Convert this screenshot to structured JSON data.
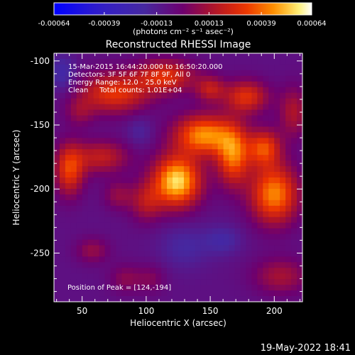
{
  "chart_data": {
    "type": "heatmap",
    "title": "Reconstructed RHESSI Image",
    "xlabel": "Heliocentric X (arcsec)",
    "ylabel": "Heliocentric Y (arcsec)",
    "xlim": [
      28,
      222
    ],
    "ylim": [
      -288,
      -94
    ],
    "x_ticks": [
      50,
      100,
      150,
      200
    ],
    "y_ticks": [
      -100,
      -150,
      -200,
      -250
    ],
    "x_tick_labels": [
      "50",
      "100",
      "150",
      "200"
    ],
    "y_tick_labels": [
      "-100",
      "-150",
      "-200",
      "-250"
    ],
    "colorbar": {
      "range": [
        -0.00064,
        0.00064
      ],
      "ticks": [
        -0.00064,
        -0.00039,
        -0.00013,
        0.00013,
        0.00039,
        0.00064
      ],
      "tick_labels": [
        "-0.00064",
        "-0.00039",
        "-0.00013",
        "0.00013",
        "0.00039",
        "0.00064"
      ],
      "units_label": "(photons cm⁻² s⁻¹ asec⁻²)"
    },
    "annotations": [
      "15-Mar-2015 16:44:20.000 to 16:50:20.000",
      "Detectors: 3F 5F 6F 7F 8F 9F, All 0",
      "Energy Range: 12.0 - 25.0 keV",
      "Clean     Total counts: 1.01E+04",
      "Position of Peak = [124,-194]"
    ],
    "peak": {
      "x": 124,
      "y": -194
    },
    "sources": [
      {
        "x": 124,
        "y": -194,
        "sx": 13,
        "sy": 14,
        "amp": 1.0
      },
      {
        "x": 145,
        "y": -158,
        "sx": 16,
        "sy": 11,
        "amp": 0.82
      },
      {
        "x": 168,
        "y": -174,
        "sx": 9,
        "sy": 16,
        "amp": 0.72
      },
      {
        "x": 192,
        "y": -168,
        "sx": 9,
        "sy": 10,
        "amp": 0.62
      },
      {
        "x": 200,
        "y": -204,
        "sx": 13,
        "sy": 16,
        "amp": 0.8
      },
      {
        "x": 178,
        "y": -128,
        "sx": 12,
        "sy": 9,
        "amp": 0.55
      },
      {
        "x": 75,
        "y": -125,
        "sx": 19,
        "sy": 11,
        "amp": 0.58
      },
      {
        "x": 115,
        "y": -112,
        "sx": 16,
        "sy": 9,
        "amp": 0.55
      },
      {
        "x": 40,
        "y": -185,
        "sx": 8,
        "sy": 14,
        "amp": 0.6
      },
      {
        "x": 65,
        "y": -175,
        "sx": 15,
        "sy": 9,
        "amp": 0.42
      },
      {
        "x": 100,
        "y": -210,
        "sx": 9,
        "sy": 11,
        "amp": 0.35
      },
      {
        "x": 78,
        "y": -205,
        "sx": 8,
        "sy": 8,
        "amp": 0.25
      },
      {
        "x": 58,
        "y": -248,
        "sx": 9,
        "sy": 7,
        "amp": 0.26
      },
      {
        "x": 84,
        "y": -270,
        "sx": 9,
        "sy": 8,
        "amp": 0.22
      },
      {
        "x": 205,
        "y": -268,
        "sx": 15,
        "sy": 10,
        "amp": 0.32
      },
      {
        "x": 104,
        "y": -270,
        "sx": 8,
        "sy": 8,
        "amp": 0.18
      },
      {
        "x": 150,
        "y": -122,
        "sx": 8,
        "sy": 7,
        "amp": 0.4
      },
      {
        "x": 48,
        "y": -140,
        "sx": 8,
        "sy": 8,
        "amp": 0.22
      },
      {
        "x": 215,
        "y": -140,
        "sx": 8,
        "sy": 14,
        "amp": 0.35
      },
      {
        "x": 160,
        "y": -240,
        "sx": 10,
        "sy": 8,
        "amp": -0.2
      },
      {
        "x": 130,
        "y": -245,
        "sx": 14,
        "sy": 12,
        "amp": -0.18
      },
      {
        "x": 95,
        "y": -155,
        "sx": 7,
        "sy": 8,
        "amp": -0.15
      },
      {
        "x": 35,
        "y": -110,
        "sx": 7,
        "sy": 10,
        "amp": -0.25
      }
    ],
    "baseline": -0.12
  },
  "footer": {
    "timestamp": "19-May-2022 18:41"
  }
}
